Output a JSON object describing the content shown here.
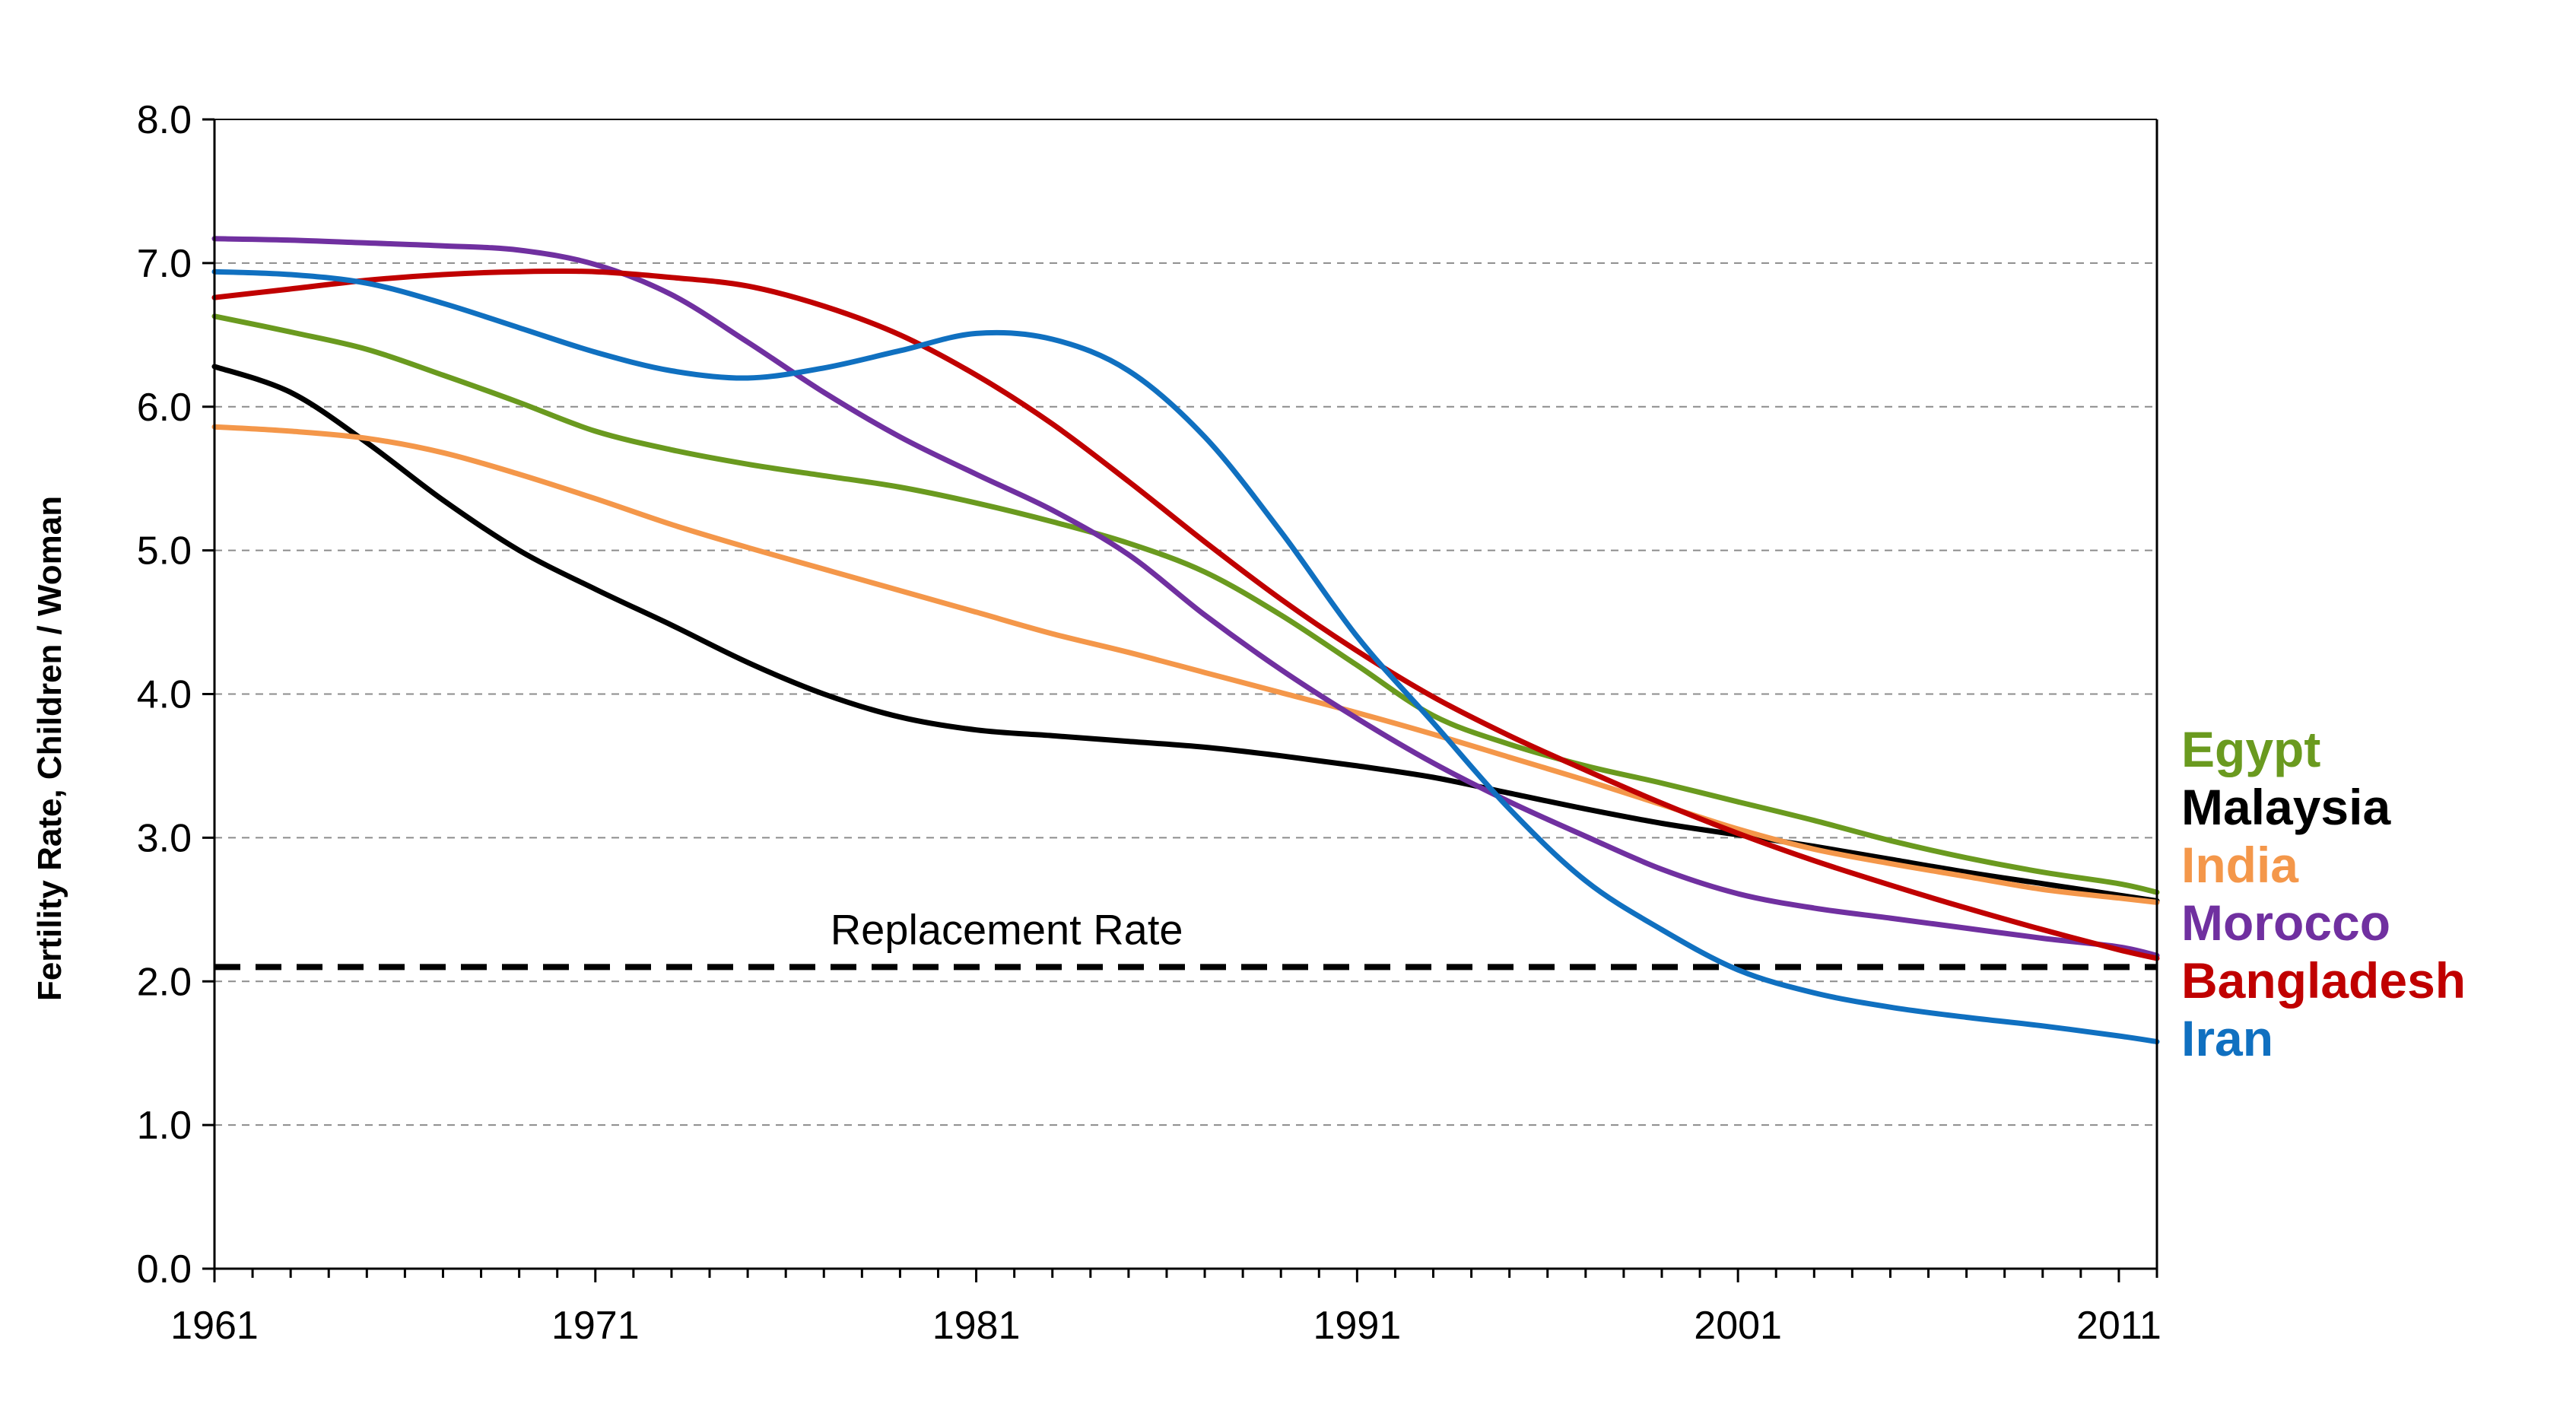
{
  "chart_data": {
    "type": "line",
    "title": "",
    "xlabel": "",
    "ylabel": "Fertility Rate, Children / Woman",
    "xlim": [
      1961,
      2012
    ],
    "ylim": [
      0,
      8
    ],
    "x_ticks": [
      "1961",
      "1971",
      "1981",
      "1991",
      "2001",
      "2011"
    ],
    "y_ticks": [
      "0.0",
      "1.0",
      "2.0",
      "3.0",
      "4.0",
      "5.0",
      "6.0",
      "7.0",
      "8.0"
    ],
    "grid": "horizontal dashed",
    "legend_placement": "right, labels at line ends",
    "x": [
      1961,
      1963,
      1965,
      1967,
      1969,
      1971,
      1973,
      1975,
      1977,
      1979,
      1981,
      1983,
      1985,
      1987,
      1989,
      1991,
      1993,
      1995,
      1997,
      1999,
      2001,
      2003,
      2005,
      2007,
      2009,
      2011,
      2012
    ],
    "series": [
      {
        "name": "Egypt",
        "color": "#6a9a1f",
        "values": [
          6.63,
          6.52,
          6.4,
          6.22,
          6.03,
          5.83,
          5.7,
          5.6,
          5.52,
          5.44,
          5.33,
          5.2,
          5.05,
          4.85,
          4.55,
          4.2,
          3.85,
          3.65,
          3.5,
          3.38,
          3.25,
          3.12,
          2.98,
          2.86,
          2.76,
          2.68,
          2.62
        ]
      },
      {
        "name": "Malaysia",
        "color": "#000000",
        "values": [
          6.28,
          6.1,
          5.75,
          5.35,
          5.0,
          4.73,
          4.48,
          4.22,
          4.0,
          3.84,
          3.75,
          3.71,
          3.67,
          3.63,
          3.57,
          3.5,
          3.42,
          3.31,
          3.2,
          3.1,
          3.02,
          2.94,
          2.85,
          2.76,
          2.68,
          2.6,
          2.56
        ]
      },
      {
        "name": "India",
        "color": "#f4974a",
        "values": [
          5.86,
          5.83,
          5.78,
          5.68,
          5.53,
          5.36,
          5.18,
          5.02,
          4.87,
          4.72,
          4.57,
          4.42,
          4.29,
          4.15,
          4.01,
          3.87,
          3.72,
          3.56,
          3.4,
          3.23,
          3.06,
          2.92,
          2.82,
          2.73,
          2.64,
          2.58,
          2.55
        ]
      },
      {
        "name": "Morocco",
        "color": "#7030a0",
        "values": [
          7.17,
          7.16,
          7.14,
          7.12,
          7.09,
          6.99,
          6.78,
          6.45,
          6.1,
          5.79,
          5.53,
          5.28,
          4.97,
          4.55,
          4.17,
          3.83,
          3.52,
          3.25,
          3.01,
          2.78,
          2.61,
          2.51,
          2.44,
          2.37,
          2.3,
          2.24,
          2.18
        ]
      },
      {
        "name": "Bangladesh",
        "color": "#c00000",
        "values": [
          6.76,
          6.82,
          6.88,
          6.92,
          6.94,
          6.94,
          6.9,
          6.84,
          6.7,
          6.5,
          6.22,
          5.88,
          5.48,
          5.06,
          4.66,
          4.3,
          3.98,
          3.71,
          3.47,
          3.24,
          3.03,
          2.84,
          2.67,
          2.51,
          2.36,
          2.22,
          2.16
        ]
      },
      {
        "name": "Iran",
        "color": "#1070c0",
        "values": [
          6.94,
          6.92,
          6.86,
          6.72,
          6.55,
          6.38,
          6.25,
          6.2,
          6.27,
          6.39,
          6.51,
          6.47,
          6.25,
          5.79,
          5.13,
          4.4,
          3.8,
          3.2,
          2.7,
          2.36,
          2.08,
          1.92,
          1.82,
          1.75,
          1.69,
          1.62,
          1.58
        ]
      }
    ],
    "reference_line": {
      "label": "Replacement Rate",
      "value": 2.1
    }
  }
}
